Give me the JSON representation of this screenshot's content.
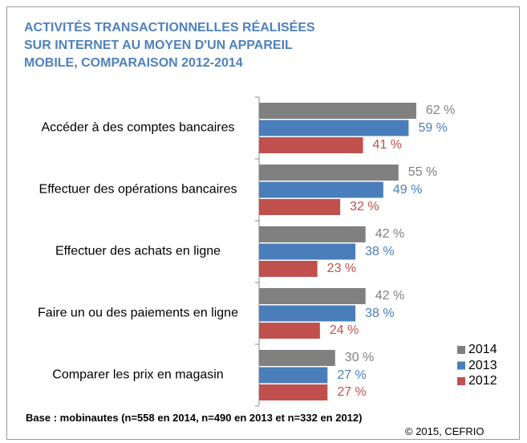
{
  "chart_data": {
    "type": "bar",
    "orientation": "horizontal",
    "title": "ACTIVITÉS TRANSACTIONNELLES RÉALISÉES SUR INTERNET AU MOYEN D'UN APPAREIL MOBILE, COMPARAISON 2012-2014",
    "categories": [
      "Accéder à des comptes bancaires",
      "Effectuer des opérations bancaires",
      "Effectuer des achats en ligne",
      "Faire un ou des paiements en ligne",
      "Comparer les prix en magasin"
    ],
    "series": [
      {
        "name": "2014",
        "color": "#808080",
        "values": [
          62,
          55,
          42,
          42,
          30
        ],
        "value_labels": [
          "62 %",
          "55 %",
          "42 %",
          "42 %",
          "30 %"
        ]
      },
      {
        "name": "2013",
        "color": "#4a7ebb",
        "values": [
          59,
          49,
          38,
          38,
          27
        ],
        "value_labels": [
          "59 %",
          "49 %",
          "38 %",
          "38 %",
          "27 %"
        ]
      },
      {
        "name": "2012",
        "color": "#c0504d",
        "values": [
          41,
          32,
          23,
          24,
          27
        ],
        "value_labels": [
          "41 %",
          "32 %",
          "23 %",
          "24 %",
          "27 %"
        ]
      }
    ],
    "legend": "bottom-right",
    "footnote": "Base : mobinautes (n=558 en 2014, n=490 en 2013 et n=332 en 2012)",
    "source": "© 2015, CEFRIO"
  }
}
